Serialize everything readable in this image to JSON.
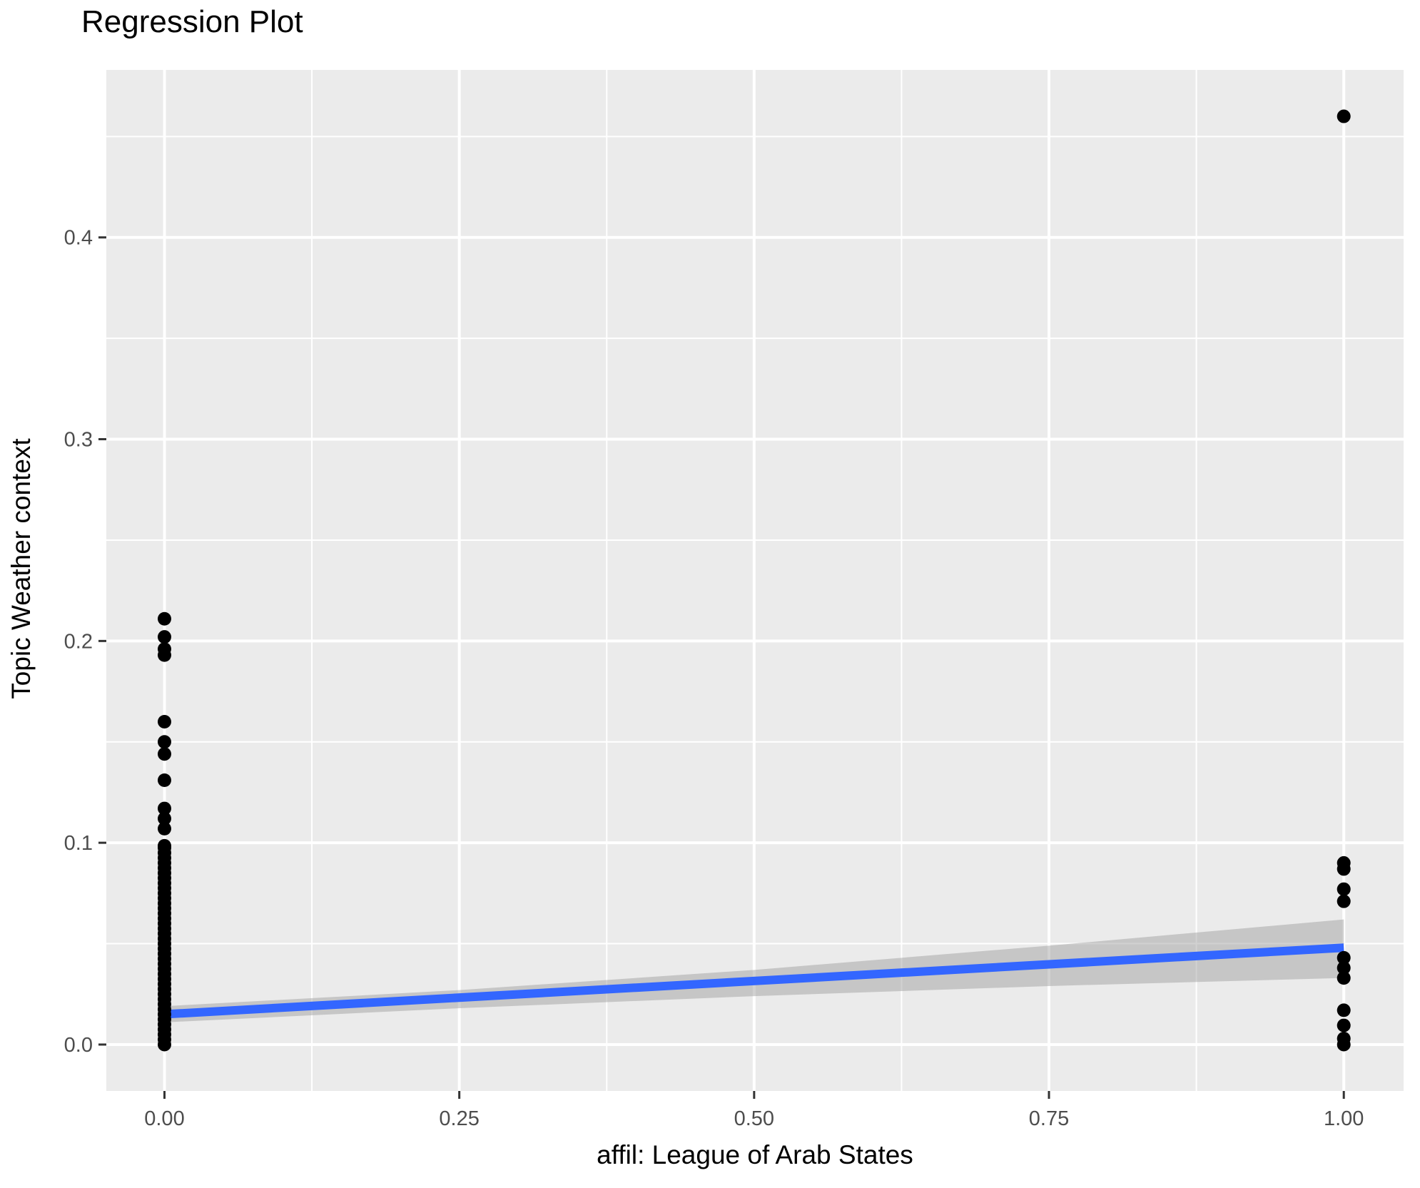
{
  "page": {
    "background": "#FFFFFF"
  },
  "chart_data": {
    "type": "scatter",
    "title": "Regression Plot",
    "xlabel": "affil: League of Arab States",
    "ylabel": "Topic Weather context",
    "xlim": [
      -0.0493,
      1.0507
    ],
    "ylim": [
      -0.023,
      0.483
    ],
    "grid": true,
    "legend": "none",
    "x_ticks": {
      "values": [
        0,
        0.25,
        0.5,
        0.75,
        1
      ],
      "labels": [
        "0.00",
        "0.25",
        "0.50",
        "0.75",
        "1.00"
      ],
      "minor": [
        0.125,
        0.375,
        0.625,
        0.875
      ]
    },
    "y_ticks": {
      "values": [
        0,
        0.1,
        0.2,
        0.3,
        0.4
      ],
      "labels": [
        "0.0",
        "0.1",
        "0.2",
        "0.3",
        "0.4"
      ],
      "minor": [
        0.05,
        0.15,
        0.25,
        0.35,
        0.45
      ]
    },
    "colors": {
      "panel": "#EBEBEB",
      "grid": "#FFFFFF",
      "point": "#000000",
      "regression_line": "#3366FF",
      "band": "#999999",
      "tick_label": "#4D4D4D",
      "tick_mark": "#333333",
      "axis_title": "#000000",
      "title": "#000000"
    },
    "points_x0": [
      0,
      0.0025,
      0.005,
      0.0075,
      0.01,
      0.0125,
      0.015,
      0.0175,
      0.02,
      0.0225,
      0.025,
      0.0275,
      0.03,
      0.0325,
      0.035,
      0.0375,
      0.04,
      0.0425,
      0.045,
      0.0475,
      0.05,
      0.0525,
      0.055,
      0.0575,
      0.06,
      0.0625,
      0.065,
      0.0675,
      0.07,
      0.0725,
      0.075,
      0.0775,
      0.08,
      0.0825,
      0.085,
      0.0875,
      0.09,
      0.0925,
      0.095,
      0.0975,
      0.0985,
      0.107,
      0.112,
      0.117,
      0.131,
      0.144,
      0.15,
      0.16,
      0.193,
      0.196,
      0.202,
      0.211
    ],
    "points_x1": [
      0,
      0.003,
      0.0095,
      0.017,
      0.033,
      0.038,
      0.043,
      0.071,
      0.077,
      0.087,
      0.09,
      0.46
    ],
    "regression_line": {
      "x": [
        0,
        1
      ],
      "y": [
        0.015,
        0.048
      ]
    },
    "confidence_band": {
      "x": [
        0,
        0.25,
        0.5,
        0.75,
        1
      ],
      "upper": [
        0.019,
        0.027,
        0.037,
        0.049,
        0.062
      ],
      "lower": [
        0.011,
        0.018,
        0.024,
        0.029,
        0.033
      ],
      "opacity": 0.45
    }
  }
}
